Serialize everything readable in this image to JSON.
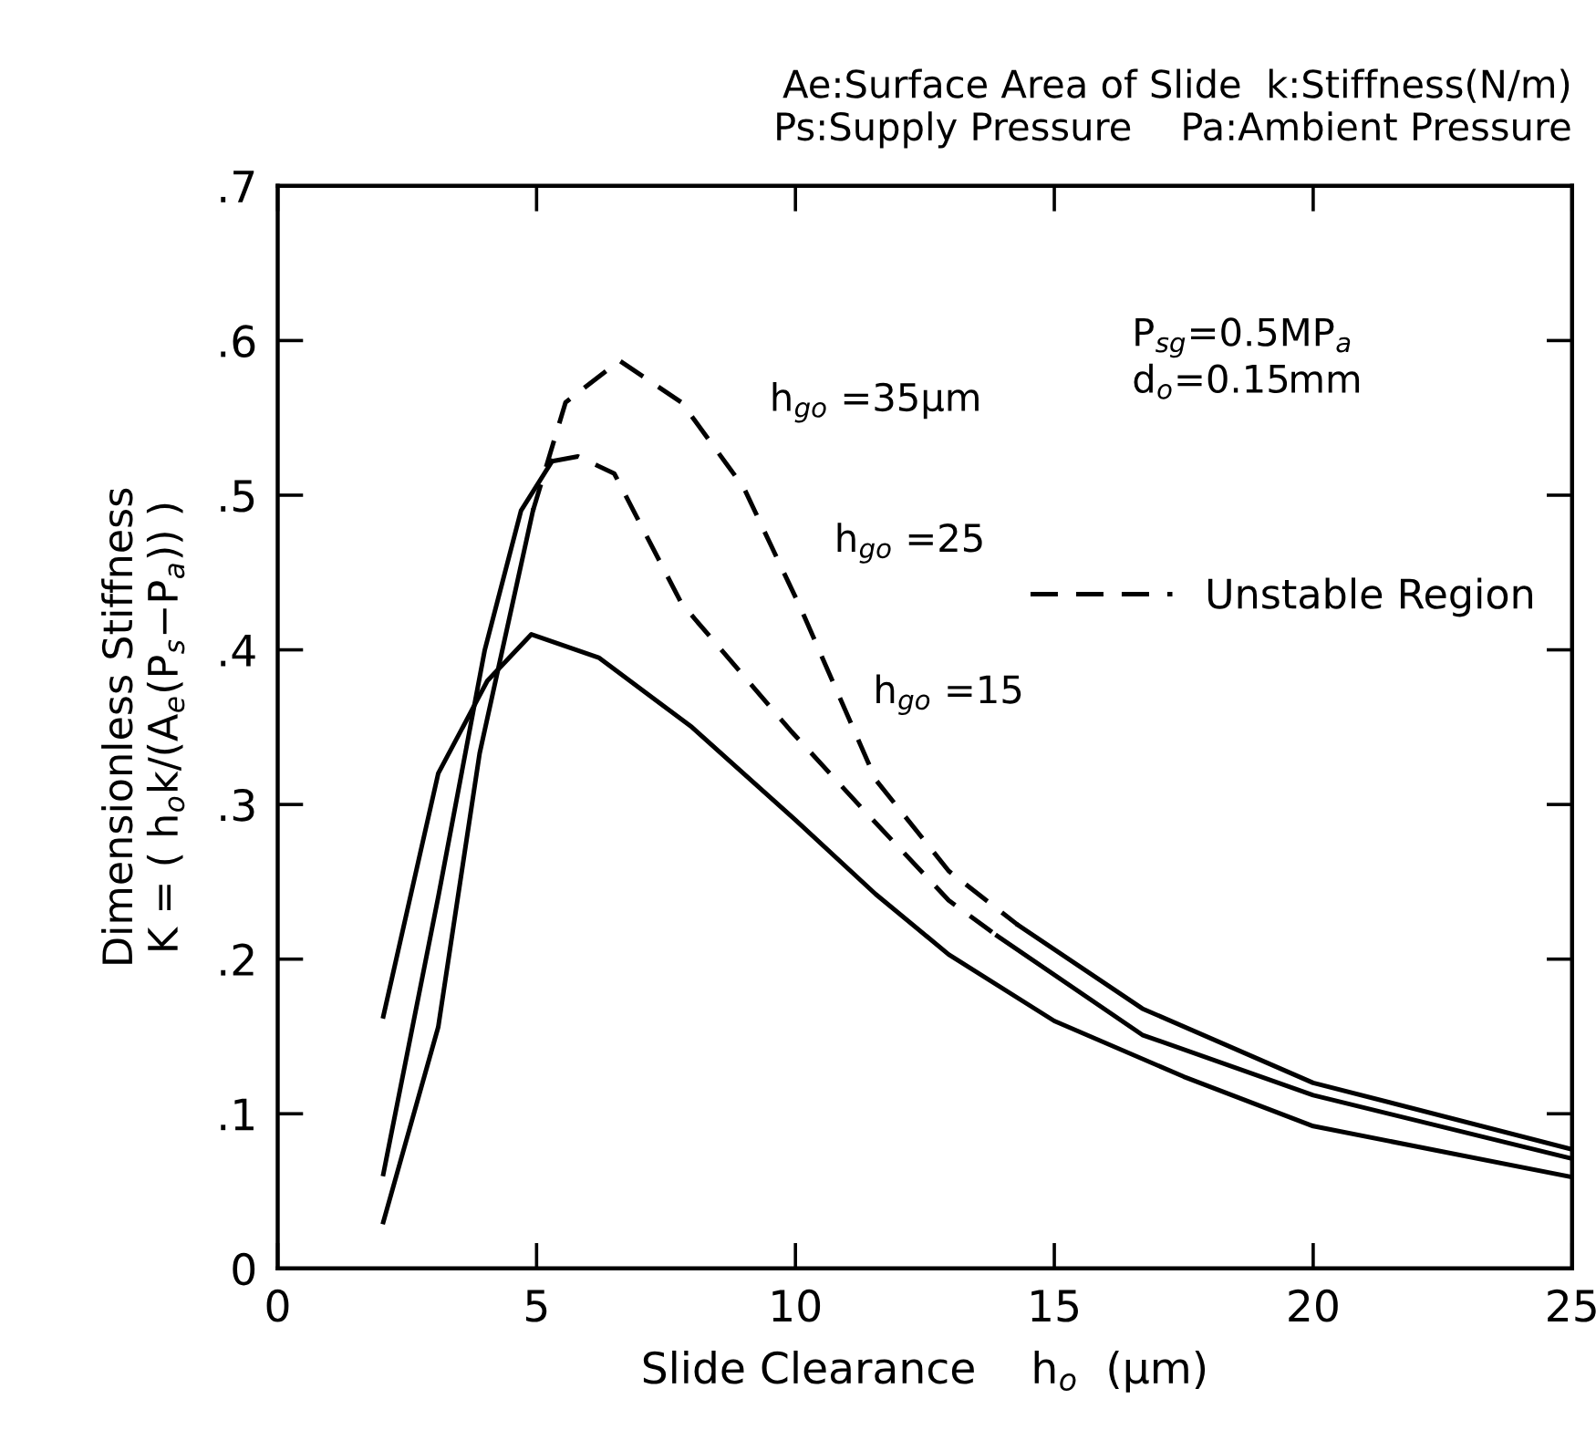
{
  "chart_data": {
    "type": "line",
    "title": "Ae:Surface Area of Slide  k:Stiffness(N/m)\nPs:Supply Pressure    Pa:Ambient Pressure",
    "xlabel": "Slide Clearance    h$_{o}$  (μm)",
    "ylabel": "Dimensionless Stiffness\nK = ( h$_{o}$k/(A$_{e}$(P$_{s}$−P$_{a}$)) )",
    "xlim": [
      0,
      25
    ],
    "xticks": [
      0,
      5,
      10,
      15,
      20,
      25
    ],
    "ylim": [
      0,
      0.7
    ],
    "yticks": [
      0,
      {
        "value": 0.1,
        "label": ".1"
      },
      {
        "value": 0.2,
        "label": ".2"
      },
      {
        "value": 0.3,
        "label": ".3"
      },
      {
        "value": 0.4,
        "label": ".4"
      },
      {
        "value": 0.5,
        "label": ".5"
      },
      {
        "value": 0.6,
        "label": ".6"
      },
      {
        "value": 0.7,
        "label": ".7"
      }
    ],
    "grid": false,
    "legend": "right",
    "marker": "none",
    "series": [
      {
        "color": "#000000",
        "line_style": "solid",
        "x": [
          2.04,
          3.1,
          4.05,
          4.9,
          6.2,
          8.0,
          10.0,
          11.55,
          12.96,
          15.0,
          17.5,
          20.0,
          25.0
        ],
        "values": [
          0.163,
          0.32,
          0.38,
          0.41,
          0.395,
          0.35,
          0.29,
          0.242,
          0.203,
          0.16,
          0.124,
          0.092,
          0.059
        ]
      },
      {
        "color": "#000000",
        "line_style": "solid",
        "x": [
          2.04,
          3.1,
          4.0,
          4.7,
          5.3
        ],
        "values": [
          0.061,
          0.24,
          0.4,
          0.49,
          0.522
        ]
      },
      {
        "name": "Unstable Region",
        "color": "#000000",
        "line_style": "dashed",
        "x": [
          5.3,
          5.8,
          6.5,
          7.8,
          9.9,
          11.3,
          12.96,
          13.9
        ],
        "values": [
          0.522,
          0.525,
          0.514,
          0.43,
          0.348,
          0.297,
          0.238,
          0.215
        ]
      },
      {
        "color": "#000000",
        "line_style": "solid",
        "x": [
          13.9,
          16.7,
          20.0,
          25.0
        ],
        "values": [
          0.215,
          0.151,
          0.112,
          0.071
        ]
      },
      {
        "color": "#000000",
        "line_style": "solid",
        "x": [
          2.04,
          3.1,
          3.9,
          4.93
        ],
        "values": [
          0.03,
          0.156,
          0.333,
          0.49
        ]
      },
      {
        "color": "#000000",
        "line_style": "dashed",
        "x": [
          4.93,
          5.56,
          6.6,
          7.8,
          9.0,
          10.1,
          11.55,
          12.96,
          14.3
        ],
        "values": [
          0.49,
          0.56,
          0.587,
          0.56,
          0.505,
          0.427,
          0.316,
          0.257,
          0.222
        ]
      },
      {
        "color": "#000000",
        "line_style": "solid",
        "x": [
          14.3,
          16.7,
          20.0,
          25.0
        ],
        "values": [
          0.222,
          0.168,
          0.12,
          0.077
        ]
      }
    ],
    "annotations": [
      "h$_{go}$ =35μm",
      "h$_{go}$ =25",
      "h$_{go}$ =15",
      "P$_{sg}$=0.5MP$_{a}$\nd$_{o}$=0.15mm"
    ]
  }
}
